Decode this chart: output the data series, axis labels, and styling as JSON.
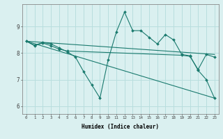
{
  "title": "",
  "xlabel": "Humidex (Indice chaleur)",
  "ylabel": "",
  "bg_color": "#daf0f0",
  "line_color": "#1a7a6e",
  "grid_color": "#b8dede",
  "xlim": [
    -0.5,
    23.5
  ],
  "ylim": [
    5.7,
    9.85
  ],
  "xtick_labels": [
    "0",
    "1",
    "2",
    "3",
    "4",
    "5",
    "6",
    "7",
    "8",
    "9",
    "10",
    "11",
    "12",
    "13",
    "14",
    "15",
    "16",
    "17",
    "18",
    "19",
    "20",
    "21",
    "22",
    "23"
  ],
  "ytick_values": [
    6,
    7,
    8,
    9
  ],
  "series": [
    {
      "x": [
        0,
        1,
        2,
        3,
        4,
        5,
        6,
        7,
        8,
        9,
        10,
        11,
        12,
        13,
        14,
        15,
        16,
        17,
        18,
        19,
        20,
        21,
        22,
        23
      ],
      "y": [
        8.45,
        8.3,
        8.4,
        8.35,
        8.2,
        8.05,
        7.85,
        7.3,
        6.8,
        6.3,
        7.75,
        8.8,
        9.55,
        8.85,
        8.85,
        8.6,
        8.35,
        8.7,
        8.5,
        7.95,
        7.9,
        7.35,
        7.0,
        6.3
      ],
      "marker": true
    },
    {
      "x": [
        0,
        23
      ],
      "y": [
        8.45,
        7.95
      ],
      "marker": false
    },
    {
      "x": [
        0,
        23
      ],
      "y": [
        8.45,
        6.3
      ],
      "marker": false
    },
    {
      "x": [
        0,
        1,
        2,
        3,
        4,
        5,
        19,
        20,
        21,
        22,
        23
      ],
      "y": [
        8.45,
        8.28,
        8.38,
        8.28,
        8.15,
        8.08,
        7.92,
        7.88,
        7.38,
        7.95,
        7.85
      ],
      "marker": true
    }
  ]
}
